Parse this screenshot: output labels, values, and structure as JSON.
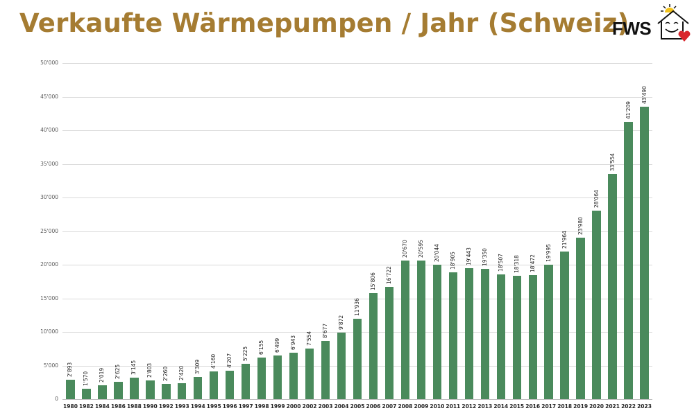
{
  "header": {
    "title": "Verkaufte Wärmepumpen / Jahr (Schweiz)",
    "logo_text": "FWS"
  },
  "colors": {
    "title": "#a57c32",
    "bar": "#4a8a5c",
    "grid": "#d9d9d9",
    "heart": "#d9262c",
    "sun": "#f2c21b"
  },
  "chart_data": {
    "type": "bar",
    "title": "Verkaufte Wärmepumpen / Jahr (Schweiz)",
    "xlabel": "",
    "ylabel": "",
    "ylim": [
      0,
      50000
    ],
    "grid": true,
    "legend": "none",
    "yticks": [
      "0",
      "5'000",
      "10'000",
      "15'000",
      "20'000",
      "25'000",
      "30'000",
      "35'000",
      "40'000",
      "45'000",
      "50'000"
    ],
    "categories": [
      "1980",
      "1982",
      "1984",
      "1986",
      "1988",
      "1990",
      "1992",
      "1993",
      "1994",
      "1995",
      "1996",
      "1997",
      "1998",
      "1999",
      "2000",
      "2002",
      "2003",
      "2004",
      "2005",
      "2006",
      "2007",
      "2008",
      "2009",
      "2010",
      "2011",
      "2012",
      "2013",
      "2014",
      "2015",
      "2016",
      "2017",
      "2018",
      "2019",
      "2020",
      "2021",
      "2022",
      "2023"
    ],
    "values": [
      2893,
      1570,
      2019,
      2625,
      3145,
      2803,
      2260,
      2420,
      3309,
      4160,
      4207,
      5225,
      6155,
      6499,
      6943,
      7554,
      8677,
      9872,
      11936,
      15806,
      16722,
      20670,
      20595,
      20044,
      18905,
      19443,
      19350,
      18507,
      18318,
      18472,
      19995,
      21964,
      23980,
      28064,
      33554,
      41209,
      43490
    ],
    "value_labels": [
      "2'893",
      "1'570",
      "2'019",
      "2'625",
      "3'145",
      "2'803",
      "2'260",
      "2'420",
      "3'309",
      "4'160",
      "4'207",
      "5'225",
      "6'155",
      "6'499",
      "6'943",
      "7'554",
      "8'677",
      "9'872",
      "11'936",
      "15'806",
      "16'722",
      "20'670",
      "20'595",
      "20'044",
      "18'905",
      "19'443",
      "19'350",
      "18'507",
      "18'318",
      "18'472",
      "19'995",
      "21'964",
      "23'980",
      "28'064",
      "33'554",
      "41'209",
      "43'490"
    ]
  }
}
